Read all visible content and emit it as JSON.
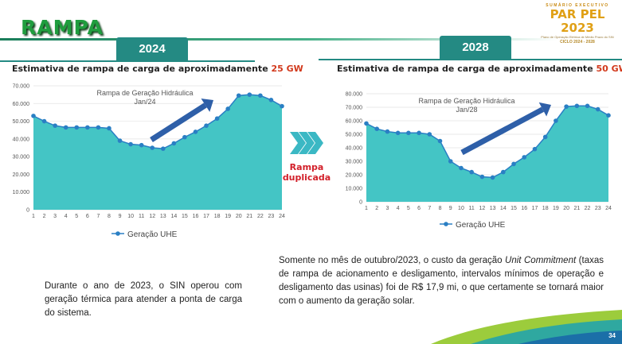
{
  "header": {
    "title": "RAMPA"
  },
  "logo": {
    "subtitle": "SUMÁRIO EXECUTIVO",
    "name": "PAR PEL 2023",
    "description": "Plano de Operação Elétrica de Médio Prazo do SIN",
    "cycle": "CICLO 2024 - 2028"
  },
  "left_panel": {
    "year": "2024",
    "title_prefix": "Estimativa de rampa de carga de aproximadamente ",
    "title_highlight": "25 GW"
  },
  "right_panel": {
    "year": "2028",
    "title_prefix": "Estimativa de rampa de carga de aproximadamente ",
    "title_highlight": "50 GW"
  },
  "middle": {
    "label_line1": "Rampa",
    "label_line2": "duplicada"
  },
  "text": {
    "left": "Durante o ano de 2023, o SIN operou com geração térmica para atender a ponta de carga do sistema.",
    "right_before": "Somente no mês de outubro/2023, o custo da geração ",
    "right_italic": "Unit Commitment",
    "right_after": " (taxas de rampa de acionamento e desligamento, intervalos mínimos de operação e desligamento das usinas) foi de R$ 17,9 mi, o que certamente se tornará maior com o aumento da geração solar."
  },
  "footer": {
    "page_number": "34"
  },
  "chart_data": [
    {
      "type": "area",
      "annotation": "Rampa de Geração Hidráulica\nJan/24",
      "x": [
        1,
        2,
        3,
        4,
        5,
        6,
        7,
        8,
        9,
        10,
        11,
        12,
        13,
        14,
        15,
        16,
        17,
        18,
        19,
        20,
        21,
        22,
        23,
        24
      ],
      "series": [
        {
          "name": "Geração UHE",
          "values": [
            53000,
            50000,
            47500,
            46500,
            46500,
            46500,
            46500,
            46000,
            39000,
            37000,
            36500,
            35000,
            34500,
            37500,
            41000,
            44000,
            47500,
            51500,
            57000,
            64500,
            65000,
            64500,
            62000,
            58500
          ]
        }
      ],
      "ylim": [
        0,
        70000
      ],
      "yticks": [
        "0",
        "10.000",
        "20.000",
        "30.000",
        "40.000",
        "50.000",
        "60.000",
        "70.000"
      ],
      "legend": "bottom",
      "color": "#44c5c5",
      "line_color": "#2a7fc4"
    },
    {
      "type": "area",
      "annotation": "Rampa de Geração Hidráulica\nJan/28",
      "x": [
        1,
        2,
        3,
        4,
        5,
        6,
        7,
        8,
        9,
        10,
        11,
        12,
        13,
        14,
        15,
        16,
        17,
        18,
        19,
        20,
        21,
        22,
        23,
        24
      ],
      "series": [
        {
          "name": "Geração UHE",
          "values": [
            58000,
            54000,
            52000,
            51000,
            51000,
            51000,
            50000,
            45000,
            30000,
            25000,
            22000,
            18500,
            18000,
            22000,
            28000,
            33000,
            39000,
            48000,
            60000,
            70500,
            71000,
            71000,
            68500,
            64000
          ]
        }
      ],
      "ylim": [
        0,
        80000
      ],
      "yticks": [
        "0",
        "10.000",
        "20.000",
        "30.000",
        "40.000",
        "50.000",
        "60.000",
        "70.000",
        "80.000"
      ],
      "legend": "bottom",
      "color": "#44c5c5",
      "line_color": "#2a7fc4"
    }
  ]
}
